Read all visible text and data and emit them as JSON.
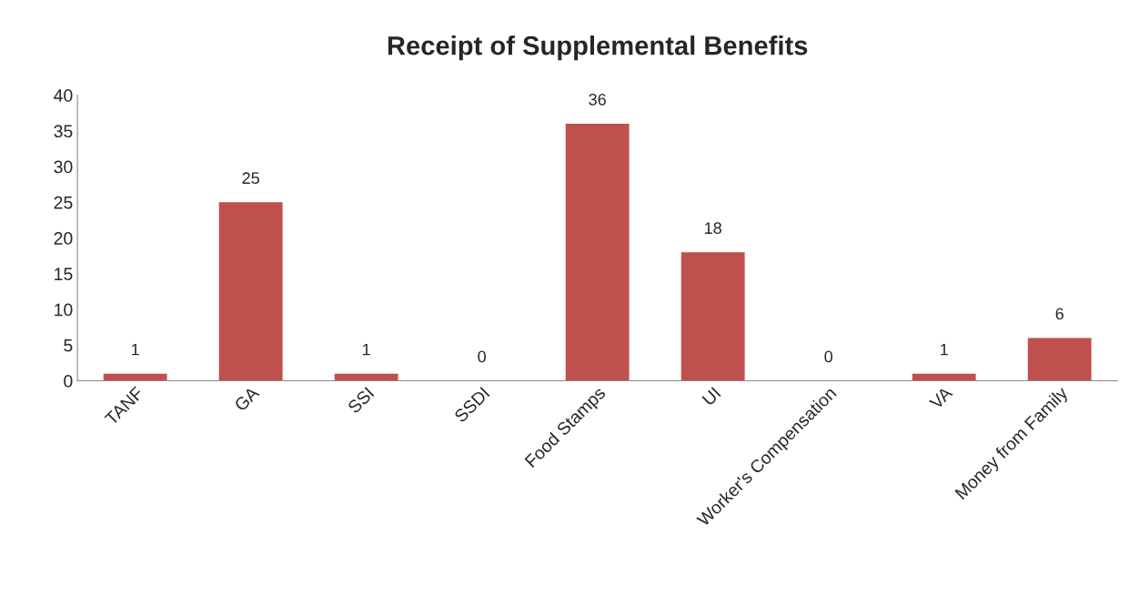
{
  "chart_data": {
    "type": "bar",
    "title": "Receipt of Supplemental Benefits",
    "categories": [
      "TANF",
      "GA",
      "SSI",
      "SSDI",
      "Food Stamps",
      "UI",
      "Worker's Compensation",
      "VA",
      "Money from Family"
    ],
    "values": [
      1,
      25,
      1,
      0,
      36,
      18,
      0,
      1,
      6
    ],
    "color": "#c0504d",
    "ylim": [
      0,
      40
    ],
    "yticks": [
      0,
      5,
      10,
      15,
      20,
      25,
      30,
      35,
      40
    ],
    "grid": false,
    "legend": false,
    "data_labels": true
  }
}
